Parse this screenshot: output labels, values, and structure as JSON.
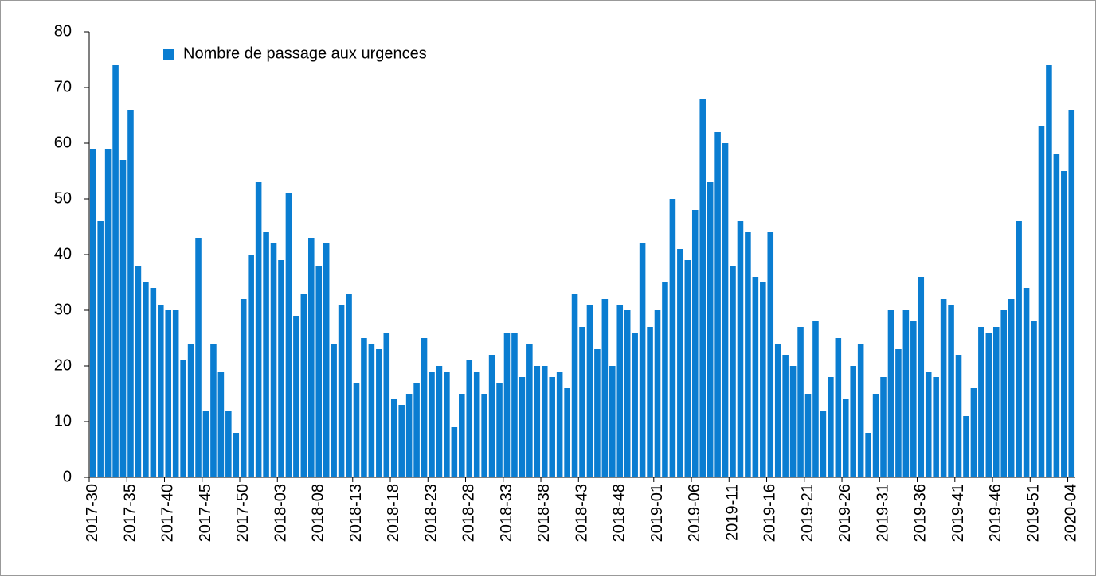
{
  "chart_data": {
    "type": "bar",
    "series": [
      {
        "name": "Nombre de passage aux urgences",
        "color": "#0a7dd1",
        "values": [
          59,
          46,
          59,
          74,
          57,
          66,
          38,
          35,
          34,
          31,
          30,
          30,
          21,
          24,
          43,
          12,
          24,
          19,
          12,
          8,
          32,
          40,
          53,
          44,
          42,
          39,
          51,
          29,
          33,
          43,
          38,
          42,
          24,
          31,
          33,
          17,
          25,
          24,
          23,
          26,
          14,
          13,
          15,
          17,
          25,
          19,
          20,
          19,
          9,
          15,
          21,
          19,
          15,
          22,
          17,
          26,
          26,
          18,
          24,
          20,
          20,
          18,
          19,
          16,
          33,
          27,
          31,
          23,
          32,
          20,
          31,
          30,
          26,
          42,
          27,
          30,
          35,
          50,
          41,
          39,
          48,
          68,
          53,
          62,
          60,
          38,
          46,
          44,
          36,
          35,
          44,
          24,
          22,
          20,
          27,
          15,
          28,
          12,
          18,
          25,
          14,
          20,
          24,
          8,
          15,
          18,
          30,
          23,
          30,
          28,
          36,
          19,
          18,
          32,
          31,
          22,
          11,
          16,
          27,
          26,
          27,
          30,
          32,
          46,
          34,
          28,
          63,
          74,
          58,
          55,
          66
        ]
      }
    ],
    "categories": [
      "2017-30",
      null,
      null,
      null,
      null,
      "2017-35",
      null,
      null,
      null,
      null,
      "2017-40",
      null,
      null,
      null,
      null,
      "2017-45",
      null,
      null,
      null,
      null,
      "2017-50",
      null,
      null,
      null,
      null,
      "2018-03",
      null,
      null,
      null,
      null,
      "2018-08",
      null,
      null,
      null,
      null,
      "2018-13",
      null,
      null,
      null,
      null,
      "2018-18",
      null,
      null,
      null,
      null,
      "2018-23",
      null,
      null,
      null,
      null,
      "2018-28",
      null,
      null,
      null,
      null,
      "2018-33",
      null,
      null,
      null,
      null,
      "2018-38",
      null,
      null,
      null,
      null,
      "2018-43",
      null,
      null,
      null,
      null,
      "2018-48",
      null,
      null,
      null,
      null,
      "2019-01",
      null,
      null,
      null,
      null,
      "2019-06",
      null,
      null,
      null,
      null,
      "2019-11",
      null,
      null,
      null,
      null,
      "2019-16",
      null,
      null,
      null,
      null,
      "2019-21",
      null,
      null,
      null,
      null,
      "2019-26",
      null,
      null,
      null,
      null,
      "2019-31",
      null,
      null,
      null,
      null,
      "2019-36",
      null,
      null,
      null,
      null,
      "2019-41",
      null,
      null,
      null,
      null,
      "2019-46",
      null,
      null,
      null,
      null,
      "2019-51",
      null,
      null,
      null,
      null,
      "2020-04"
    ],
    "ylim": [
      0,
      80
    ],
    "yticks": [
      0,
      10,
      20,
      30,
      40,
      50,
      60,
      70,
      80
    ],
    "legend": "top-left"
  }
}
